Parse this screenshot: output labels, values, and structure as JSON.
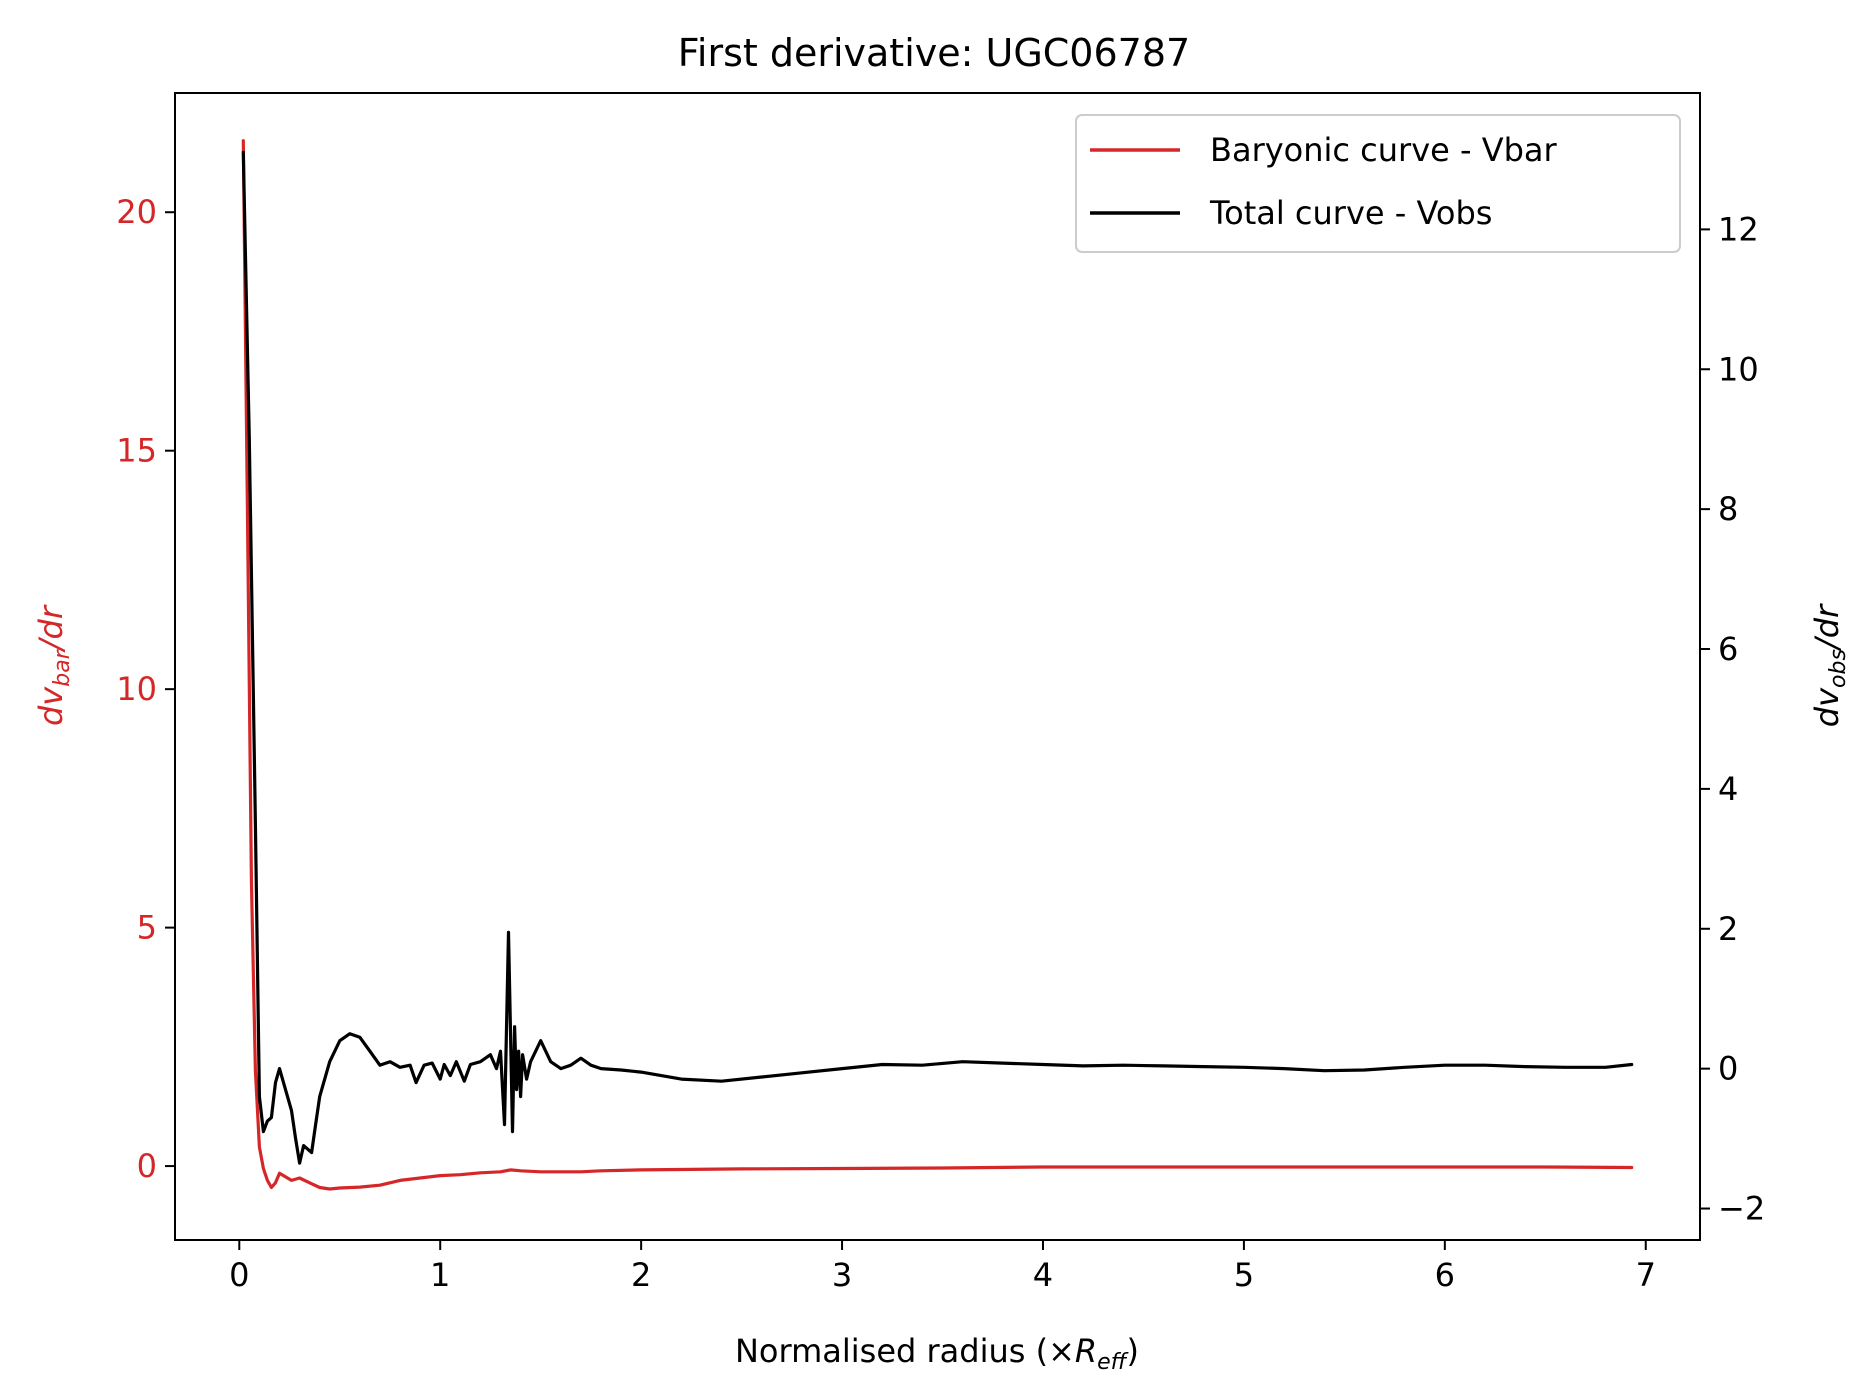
{
  "chart_data": {
    "type": "line",
    "title": "First derivative: UGC06787",
    "xlabel": {
      "prefix": "Normalised radius (×",
      "var": "R",
      "sub": "eff",
      "suffix": ")"
    },
    "ylabel_left": {
      "prefix": "dv",
      "sub": "bar",
      "suffix": "/dr"
    },
    "ylabel_right": {
      "prefix": "dv",
      "sub": "obs",
      "suffix": "/dr"
    },
    "xlim": [
      -0.32,
      7.27
    ],
    "ylim_left": [
      -1.55,
      22.5
    ],
    "ylim_right": [
      -2.45,
      13.95
    ],
    "xticks": [
      0,
      1,
      2,
      3,
      4,
      5,
      6,
      7
    ],
    "yticks_left": [
      0,
      5,
      10,
      15,
      20
    ],
    "yticks_right": [
      -2,
      0,
      2,
      4,
      6,
      8,
      10,
      12
    ],
    "grid": false,
    "legend_position": "top-right",
    "colors": {
      "bar": "#d62728",
      "obs": "#000000",
      "left_axis": "#d62728",
      "right_axis": "#000000"
    },
    "series": [
      {
        "name": "Baryonic curve - Vbar",
        "axis": "left",
        "color": "#d62728",
        "x": [
          0.02,
          0.04,
          0.06,
          0.08,
          0.1,
          0.12,
          0.14,
          0.16,
          0.18,
          0.2,
          0.22,
          0.26,
          0.3,
          0.35,
          0.4,
          0.45,
          0.5,
          0.6,
          0.7,
          0.75,
          0.8,
          0.9,
          1.0,
          1.1,
          1.2,
          1.3,
          1.35,
          1.4,
          1.5,
          1.7,
          1.8,
          2.0,
          2.5,
          3.0,
          3.5,
          4.0,
          4.5,
          5.0,
          5.5,
          6.0,
          6.5,
          6.93
        ],
        "y": [
          21.5,
          14,
          6,
          2,
          0.4,
          -0.05,
          -0.3,
          -0.45,
          -0.35,
          -0.15,
          -0.2,
          -0.3,
          -0.25,
          -0.35,
          -0.45,
          -0.48,
          -0.46,
          -0.44,
          -0.4,
          -0.35,
          -0.3,
          -0.25,
          -0.2,
          -0.18,
          -0.14,
          -0.12,
          -0.08,
          -0.1,
          -0.12,
          -0.12,
          -0.1,
          -0.08,
          -0.06,
          -0.05,
          -0.04,
          -0.02,
          -0.02,
          -0.02,
          -0.02,
          -0.02,
          -0.02,
          -0.03
        ]
      },
      {
        "name": "Total curve - Vobs",
        "axis": "right",
        "color": "#000000",
        "x": [
          0.02,
          0.05,
          0.08,
          0.1,
          0.12,
          0.14,
          0.16,
          0.18,
          0.2,
          0.22,
          0.24,
          0.26,
          0.28,
          0.3,
          0.32,
          0.34,
          0.36,
          0.38,
          0.4,
          0.45,
          0.5,
          0.55,
          0.6,
          0.65,
          0.7,
          0.75,
          0.8,
          0.85,
          0.88,
          0.92,
          0.96,
          1.0,
          1.02,
          1.05,
          1.08,
          1.12,
          1.15,
          1.2,
          1.25,
          1.28,
          1.3,
          1.32,
          1.34,
          1.36,
          1.37,
          1.38,
          1.39,
          1.4,
          1.41,
          1.43,
          1.45,
          1.5,
          1.55,
          1.6,
          1.65,
          1.7,
          1.75,
          1.8,
          1.9,
          2.0,
          2.2,
          2.4,
          2.6,
          2.8,
          3.0,
          3.2,
          3.4,
          3.6,
          3.8,
          4.0,
          4.2,
          4.4,
          4.6,
          4.8,
          5.0,
          5.2,
          5.4,
          5.6,
          5.8,
          6.0,
          6.2,
          6.4,
          6.6,
          6.8,
          6.93
        ],
        "y": [
          13.1,
          9,
          3.5,
          -0.4,
          -0.9,
          -0.75,
          -0.7,
          -0.2,
          0.0,
          -0.2,
          -0.4,
          -0.6,
          -1.0,
          -1.35,
          -1.1,
          -1.15,
          -1.2,
          -0.8,
          -0.4,
          0.1,
          0.4,
          0.5,
          0.45,
          0.25,
          0.05,
          0.1,
          0.02,
          0.05,
          -0.2,
          0.05,
          0.08,
          -0.15,
          0.06,
          -0.1,
          0.1,
          -0.18,
          0.06,
          0.1,
          0.2,
          0.0,
          0.25,
          -0.8,
          1.95,
          -0.9,
          0.6,
          -0.3,
          0.25,
          -0.4,
          0.2,
          -0.15,
          0.1,
          0.4,
          0.1,
          0.0,
          0.05,
          0.15,
          0.05,
          0.0,
          -0.02,
          -0.05,
          -0.15,
          -0.18,
          -0.12,
          -0.06,
          0.0,
          0.06,
          0.05,
          0.1,
          0.08,
          0.06,
          0.04,
          0.05,
          0.04,
          0.03,
          0.02,
          0.0,
          -0.03,
          -0.02,
          0.02,
          0.05,
          0.05,
          0.03,
          0.02,
          0.02,
          0.06
        ]
      }
    ]
  }
}
